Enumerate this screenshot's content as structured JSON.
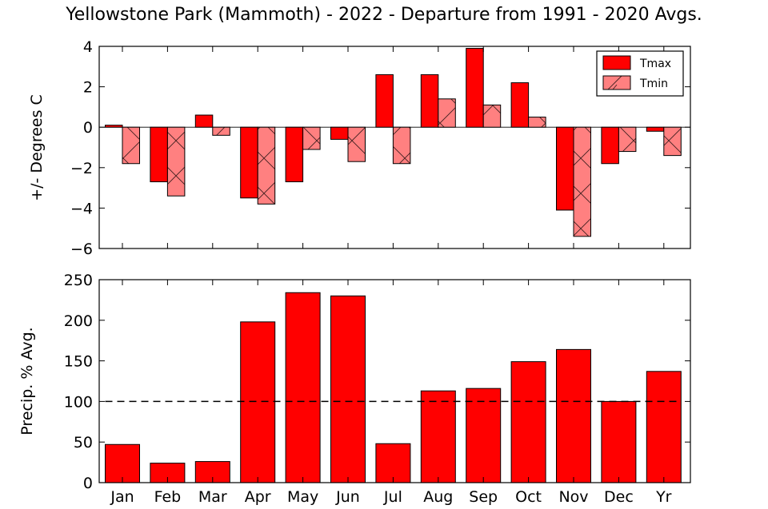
{
  "title": "Yellowstone Park (Mammoth) - 2022 - Departure from 1991 - 2020 Avgs.",
  "colors": {
    "tmax": "#ff0000",
    "tmin": "#ff8080",
    "edge": "#000000"
  },
  "chart_data": [
    {
      "type": "bar",
      "categories": [
        "Jan",
        "Feb",
        "Mar",
        "Apr",
        "May",
        "Jun",
        "Jul",
        "Aug",
        "Sep",
        "Oct",
        "Nov",
        "Dec",
        "Yr"
      ],
      "ylabel": "+/- Degrees C",
      "ylim": [
        -6,
        4
      ],
      "yticks": [
        4,
        2,
        0,
        -2,
        -4,
        -6
      ],
      "ytick_labels": [
        "4",
        "2",
        "0",
        "−2",
        "−4",
        "−6"
      ],
      "legend": {
        "position": "top-right"
      },
      "series": [
        {
          "name": "Tmax",
          "values": [
            0.1,
            -2.7,
            0.6,
            -3.5,
            -2.7,
            -0.6,
            2.6,
            2.6,
            3.9,
            2.2,
            -4.1,
            -1.8,
            -0.2
          ]
        },
        {
          "name": "Tmin",
          "values": [
            -1.8,
            -3.4,
            -0.4,
            -3.8,
            -1.1,
            -1.7,
            -1.8,
            1.4,
            1.1,
            0.5,
            -5.4,
            -1.2,
            -1.4
          ]
        }
      ]
    },
    {
      "type": "bar",
      "categories": [
        "Jan",
        "Feb",
        "Mar",
        "Apr",
        "May",
        "Jun",
        "Jul",
        "Aug",
        "Sep",
        "Oct",
        "Nov",
        "Dec",
        "Yr"
      ],
      "ylabel": "Precip. % Avg.",
      "ylim": [
        0,
        250
      ],
      "yticks": [
        250,
        200,
        150,
        100,
        50,
        0
      ],
      "ytick_labels": [
        "250",
        "200",
        "150",
        "100",
        "50",
        "0"
      ],
      "reference_line": 100,
      "values": [
        47,
        24,
        26,
        198,
        234,
        230,
        48,
        113,
        116,
        149,
        164,
        100,
        137
      ]
    }
  ]
}
